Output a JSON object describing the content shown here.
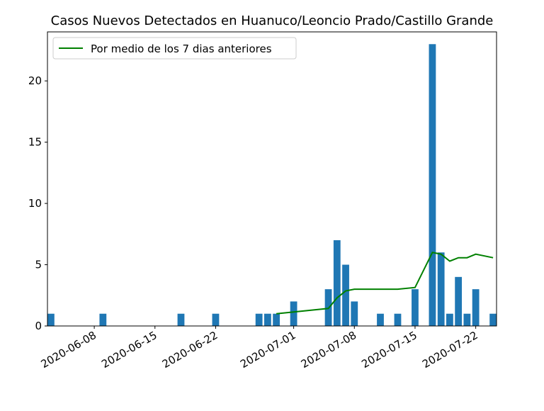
{
  "chart_data": {
    "type": "bar",
    "title": "Casos Nuevos Detectados en Huanuco/Leoncio Prado/Castillo Grande",
    "xlabel": "",
    "ylabel": "",
    "xlim": [
      "2020-06-03",
      "2020-07-24"
    ],
    "ylim": [
      0,
      24
    ],
    "y_ticks": [
      0,
      5,
      10,
      15,
      20
    ],
    "x_ticks": [
      "2020-06-08",
      "2020-06-15",
      "2020-06-22",
      "2020-07-01",
      "2020-07-08",
      "2020-07-15",
      "2020-07-22"
    ],
    "grid": false,
    "legend_position": "top-left",
    "bar_color": "#1f77b4",
    "line_color": "#008000",
    "bars": [
      {
        "date": "2020-06-03",
        "value": 1
      },
      {
        "date": "2020-06-09",
        "value": 1
      },
      {
        "date": "2020-06-18",
        "value": 1
      },
      {
        "date": "2020-06-22",
        "value": 1
      },
      {
        "date": "2020-06-27",
        "value": 1
      },
      {
        "date": "2020-06-28",
        "value": 1
      },
      {
        "date": "2020-06-29",
        "value": 1
      },
      {
        "date": "2020-07-01",
        "value": 2
      },
      {
        "date": "2020-07-05",
        "value": 3
      },
      {
        "date": "2020-07-06",
        "value": 7
      },
      {
        "date": "2020-07-07",
        "value": 5
      },
      {
        "date": "2020-07-08",
        "value": 2
      },
      {
        "date": "2020-07-11",
        "value": 1
      },
      {
        "date": "2020-07-13",
        "value": 1
      },
      {
        "date": "2020-07-15",
        "value": 3
      },
      {
        "date": "2020-07-17",
        "value": 23
      },
      {
        "date": "2020-07-18",
        "value": 6
      },
      {
        "date": "2020-07-19",
        "value": 1
      },
      {
        "date": "2020-07-20",
        "value": 4
      },
      {
        "date": "2020-07-21",
        "value": 1
      },
      {
        "date": "2020-07-22",
        "value": 3
      },
      {
        "date": "2020-07-24",
        "value": 1
      }
    ],
    "series": [
      {
        "name": "Por medio de los 7 dias anteriores",
        "type": "line",
        "points": [
          {
            "date": "2020-06-29",
            "value": 1.0
          },
          {
            "date": "2020-07-01",
            "value": 1.14
          },
          {
            "date": "2020-07-05",
            "value": 1.43
          },
          {
            "date": "2020-07-06",
            "value": 2.29
          },
          {
            "date": "2020-07-07",
            "value": 2.86
          },
          {
            "date": "2020-07-08",
            "value": 3.0
          },
          {
            "date": "2020-07-11",
            "value": 3.0
          },
          {
            "date": "2020-07-13",
            "value": 3.0
          },
          {
            "date": "2020-07-15",
            "value": 3.14
          },
          {
            "date": "2020-07-17",
            "value": 6.0
          },
          {
            "date": "2020-07-18",
            "value": 5.86
          },
          {
            "date": "2020-07-19",
            "value": 5.29
          },
          {
            "date": "2020-07-20",
            "value": 5.57
          },
          {
            "date": "2020-07-21",
            "value": 5.57
          },
          {
            "date": "2020-07-22",
            "value": 5.86
          },
          {
            "date": "2020-07-24",
            "value": 5.57
          }
        ]
      }
    ]
  }
}
